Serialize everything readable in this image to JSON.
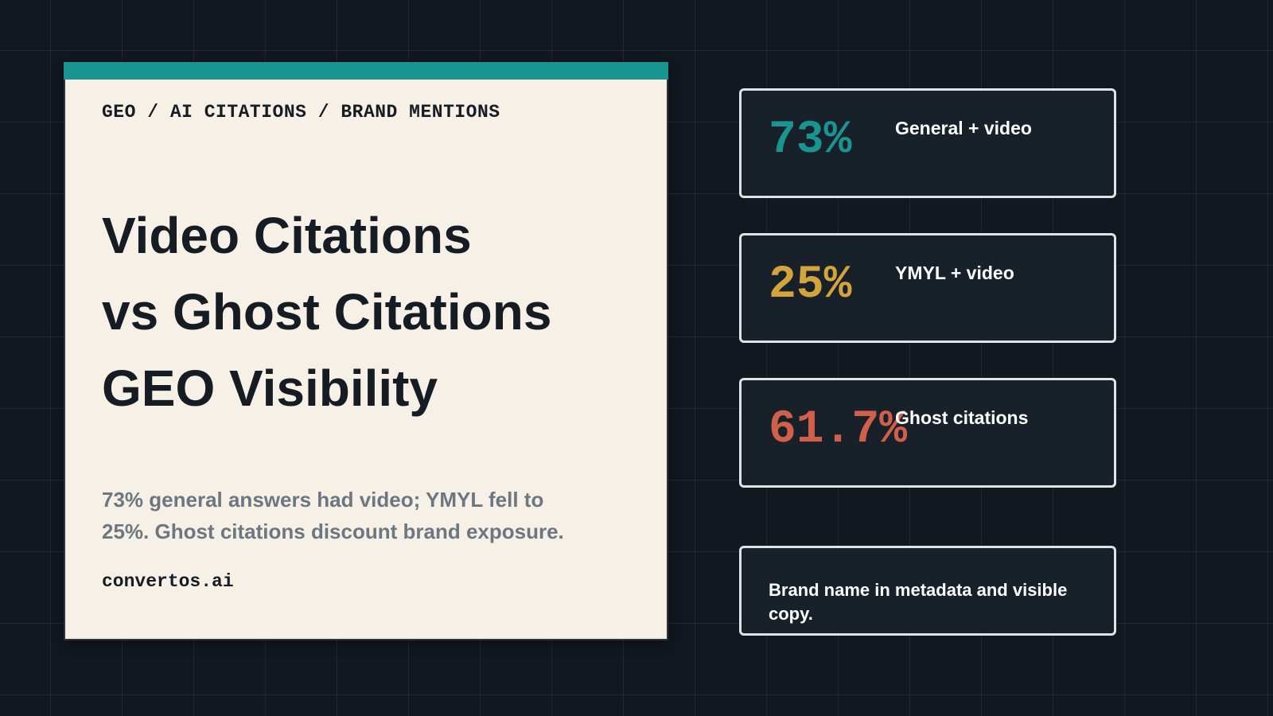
{
  "card": {
    "kicker": "GEO / AI CITATIONS / BRAND MENTIONS",
    "title_lines": [
      "Video Citations",
      "vs Ghost Citations",
      "GEO Visibility"
    ],
    "description": "73% general answers had video; YMYL fell to 25%. Ghost citations discount brand exposure.",
    "site": "convertos.ai"
  },
  "stats": [
    {
      "value": "73%",
      "label": "General + video",
      "color": "#1a9490"
    },
    {
      "value": "25%",
      "label": "YMYL + video",
      "color": "#d4a43c"
    },
    {
      "value": "61.7%",
      "label": "Ghost citations",
      "color": "#d0604a"
    }
  ],
  "note": "Brand name in metadata and visible copy."
}
